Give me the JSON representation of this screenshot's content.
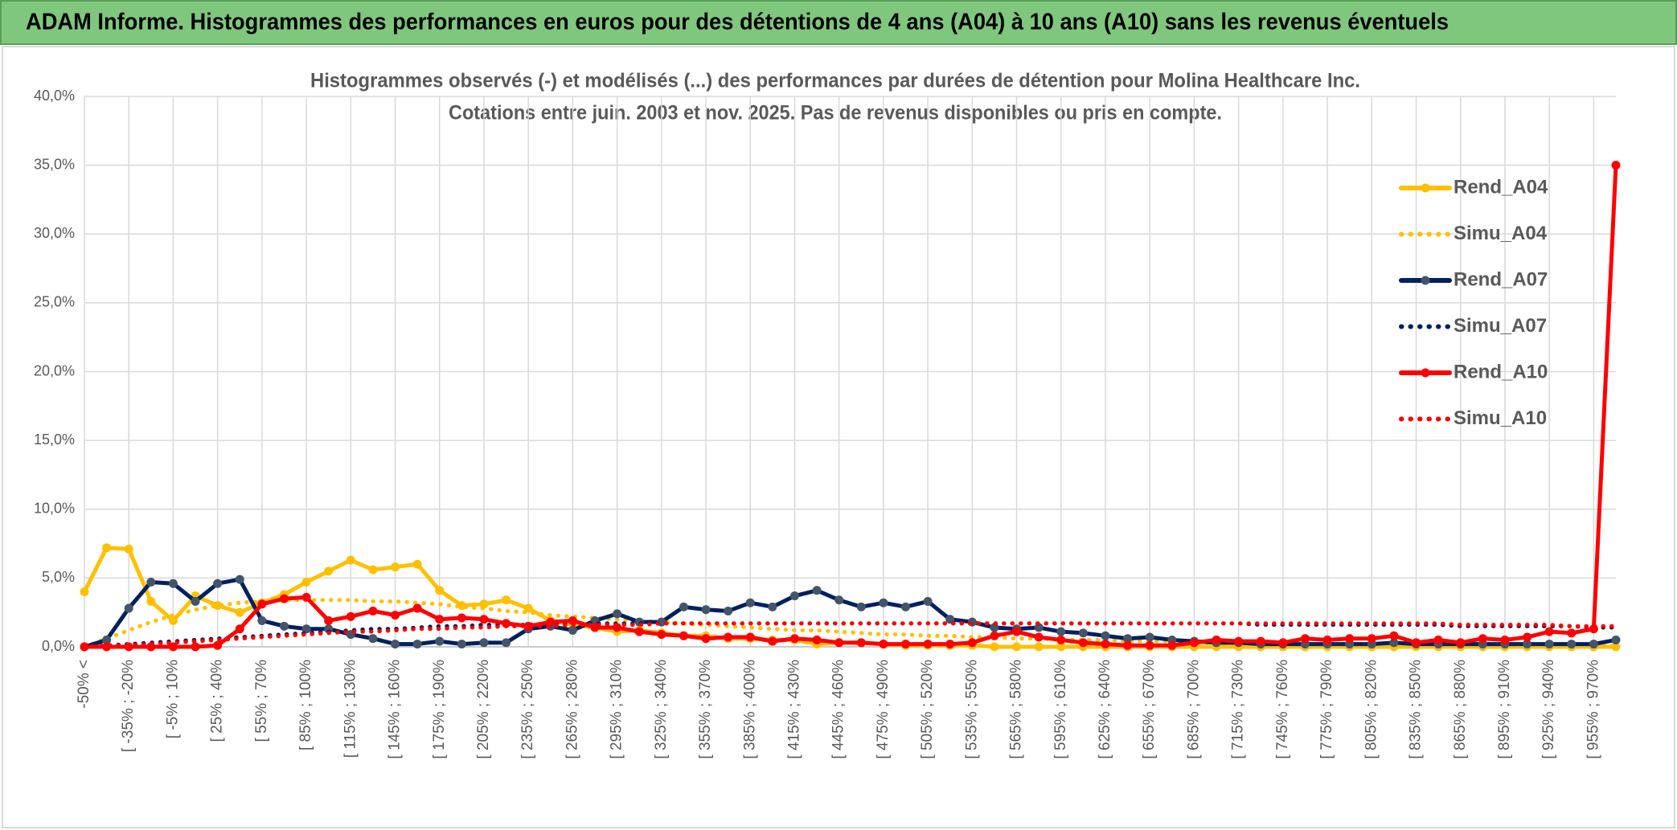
{
  "header": {
    "title": "ADAM Informe. Histogrammes des performances en euros pour des détentions de 4 ans (A04) à 10 ans (A10) sans les revenus éventuels"
  },
  "chart_data": {
    "type": "line",
    "title": "Histogrammes observés (-) et modélisés (...) des performances par durées de détention pour Molina Healthcare Inc.",
    "subtitle": "Cotations entre juin. 2003 et nov. 2025. Pas de revenus disponibles ou pris en compte.",
    "categories": [
      "-50% <",
      null,
      "[ -35% ; -20%",
      null,
      "[ -5% ; 10%",
      null,
      "[ 25% ; 40%",
      null,
      "[ 55% ; 70%",
      null,
      "[ 85% ; 100%",
      null,
      "[ 115% ; 130%",
      null,
      "[ 145% ; 160%",
      null,
      "[ 175% ; 190%",
      null,
      "[ 205% ; 220%",
      null,
      "[ 235% ; 250%",
      null,
      "[ 265% ; 280%",
      null,
      "[ 295% ; 310%",
      null,
      "[ 325% ; 340%",
      null,
      "[ 355% ; 370%",
      null,
      "[ 385% ; 400%",
      null,
      "[ 415% ; 430%",
      null,
      "[ 445% ; 460%",
      null,
      "[ 475% ; 490%",
      null,
      "[ 505% ; 520%",
      null,
      "[ 535% ; 550%",
      null,
      "[ 565% ; 580%",
      null,
      "[ 595% ; 610%",
      null,
      "[ 625% ; 640%",
      null,
      "[ 655% ; 670%",
      null,
      "[ 685% ; 700%",
      null,
      "[ 715% ; 730%",
      null,
      "[ 745% ; 760%",
      null,
      "[ 775% ; 790%",
      null,
      "[ 805% ; 820%",
      null,
      "[ 835% ; 850%",
      null,
      "[ 865% ; 880%",
      null,
      "[ 895% ; 910%",
      null,
      "[ 925% ; 940%",
      null,
      "[ 955% ; 970%",
      null
    ],
    "series": [
      {
        "name": "Rend_A04",
        "color": "#FFC000",
        "style": "solid",
        "values": [
          4.0,
          7.2,
          7.1,
          3.3,
          1.9,
          3.7,
          3.0,
          2.5,
          3.2,
          3.8,
          4.7,
          5.5,
          6.3,
          5.6,
          5.8,
          6.0,
          4.1,
          3.0,
          3.1,
          3.4,
          2.8,
          1.9,
          1.6,
          1.4,
          1.1,
          1.2,
          1.0,
          0.8,
          0.8,
          0.6,
          0.6,
          0.5,
          0.5,
          0.2,
          0.3,
          0.3,
          0.2,
          0.1,
          0.1,
          0.1,
          0.1,
          0.0,
          0.0,
          0.0,
          0.0,
          0.0,
          0.0,
          0.0,
          0.0,
          0.0,
          0.0,
          0.0,
          0.0,
          0.0,
          0.0,
          0.0,
          0.0,
          0.0,
          0.0,
          0.0,
          0.0,
          0.0,
          0.0,
          0.0,
          0.0,
          0.0,
          0.0,
          0.0,
          0.0,
          0.0
        ]
      },
      {
        "name": "Simu_A04",
        "color": "#FFC000",
        "style": "dotted",
        "values": [
          0.0,
          0.6,
          1.2,
          1.8,
          2.3,
          2.7,
          3.0,
          3.2,
          3.3,
          3.4,
          3.4,
          3.4,
          3.4,
          3.3,
          3.3,
          3.2,
          3.1,
          2.9,
          2.8,
          2.6,
          2.5,
          2.3,
          2.2,
          2.1,
          2.0,
          1.9,
          1.8,
          1.7,
          1.6,
          1.5,
          1.4,
          1.3,
          1.2,
          1.2,
          1.1,
          1.0,
          0.9,
          0.9,
          0.8,
          0.8,
          0.7,
          0.7,
          0.6,
          0.6,
          0.5,
          0.5,
          0.5,
          0.4,
          0.4,
          0.4,
          0.3,
          0.3,
          0.3,
          0.3,
          0.2,
          0.2,
          0.2,
          0.2,
          0.2,
          0.2,
          0.1,
          0.1,
          0.1,
          0.1,
          0.1,
          0.1,
          0.1,
          0.1,
          0.1,
          0.1
        ]
      },
      {
        "name": "Rend_A07",
        "color": "#002060",
        "style": "solid",
        "values": [
          0.0,
          0.5,
          2.8,
          4.7,
          4.6,
          3.3,
          4.6,
          4.9,
          1.9,
          1.5,
          1.3,
          1.3,
          0.9,
          0.6,
          0.2,
          0.2,
          0.4,
          0.2,
          0.3,
          0.3,
          1.3,
          1.5,
          1.2,
          1.9,
          2.4,
          1.8,
          1.8,
          2.9,
          2.7,
          2.6,
          3.2,
          2.9,
          3.7,
          4.1,
          3.4,
          2.9,
          3.2,
          2.9,
          3.3,
          2.0,
          1.8,
          1.4,
          1.3,
          1.4,
          1.1,
          1.0,
          0.8,
          0.6,
          0.7,
          0.5,
          0.4,
          0.3,
          0.3,
          0.2,
          0.2,
          0.2,
          0.2,
          0.2,
          0.2,
          0.3,
          0.2,
          0.2,
          0.2,
          0.2,
          0.2,
          0.2,
          0.2,
          0.2,
          0.2,
          0.5
        ]
      },
      {
        "name": "Simu_A07",
        "color": "#002060",
        "style": "dotted",
        "values": [
          0.0,
          0.1,
          0.2,
          0.3,
          0.4,
          0.5,
          0.6,
          0.7,
          0.8,
          0.9,
          1.0,
          1.1,
          1.2,
          1.3,
          1.3,
          1.4,
          1.5,
          1.5,
          1.6,
          1.6,
          1.6,
          1.7,
          1.7,
          1.7,
          1.7,
          1.7,
          1.7,
          1.7,
          1.7,
          1.7,
          1.7,
          1.7,
          1.7,
          1.7,
          1.7,
          1.7,
          1.7,
          1.7,
          1.7,
          1.7,
          1.7,
          1.7,
          1.7,
          1.7,
          1.7,
          1.7,
          1.7,
          1.7,
          1.7,
          1.7,
          1.7,
          1.7,
          1.7,
          1.6,
          1.6,
          1.6,
          1.6,
          1.6,
          1.6,
          1.6,
          1.6,
          1.6,
          1.5,
          1.5,
          1.5,
          1.5,
          1.5,
          1.5,
          1.4,
          1.4
        ]
      },
      {
        "name": "Rend_A10",
        "color": "#FF0000",
        "style": "solid",
        "values": [
          0.0,
          0.0,
          0.0,
          0.0,
          0.0,
          0.0,
          0.1,
          1.3,
          3.1,
          3.5,
          3.6,
          1.9,
          2.2,
          2.6,
          2.3,
          2.8,
          2.0,
          2.1,
          2.0,
          1.7,
          1.5,
          1.8,
          1.9,
          1.4,
          1.4,
          1.1,
          0.9,
          0.8,
          0.6,
          0.7,
          0.7,
          0.4,
          0.6,
          0.5,
          0.3,
          0.3,
          0.2,
          0.2,
          0.2,
          0.2,
          0.3,
          0.8,
          1.1,
          0.7,
          0.5,
          0.3,
          0.2,
          0.1,
          0.1,
          0.1,
          0.3,
          0.5,
          0.4,
          0.4,
          0.3,
          0.6,
          0.5,
          0.6,
          0.6,
          0.8,
          0.3,
          0.5,
          0.3,
          0.6,
          0.5,
          0.7,
          1.1,
          1.0,
          1.3,
          35.0
        ]
      },
      {
        "name": "Simu_A10",
        "color": "#FF0000",
        "style": "dotted",
        "values": [
          0.0,
          0.1,
          0.1,
          0.2,
          0.3,
          0.4,
          0.5,
          0.6,
          0.7,
          0.8,
          0.9,
          1.0,
          1.1,
          1.1,
          1.2,
          1.3,
          1.3,
          1.4,
          1.4,
          1.5,
          1.5,
          1.5,
          1.6,
          1.6,
          1.6,
          1.6,
          1.7,
          1.7,
          1.7,
          1.7,
          1.7,
          1.7,
          1.7,
          1.7,
          1.7,
          1.7,
          1.7,
          1.7,
          1.7,
          1.7,
          1.7,
          1.7,
          1.7,
          1.7,
          1.7,
          1.7,
          1.7,
          1.7,
          1.7,
          1.7,
          1.7,
          1.7,
          1.7,
          1.7,
          1.7,
          1.7,
          1.7,
          1.7,
          1.7,
          1.7,
          1.7,
          1.7,
          1.6,
          1.6,
          1.6,
          1.6,
          1.6,
          1.5,
          1.5,
          1.5
        ]
      }
    ],
    "ylim": [
      0,
      40
    ],
    "yticks": [
      {
        "value": 0,
        "label": "0,0%"
      },
      {
        "value": 5,
        "label": "5,0%"
      },
      {
        "value": 10,
        "label": "10,0%"
      },
      {
        "value": 15,
        "label": "15,0%"
      },
      {
        "value": 20,
        "label": "20,0%"
      },
      {
        "value": 25,
        "label": "25,0%"
      },
      {
        "value": 30,
        "label": "30,0%"
      },
      {
        "value": 35,
        "label": "35,0%"
      },
      {
        "value": 40,
        "label": "40,0%"
      }
    ],
    "grid": true,
    "legend": "right"
  }
}
